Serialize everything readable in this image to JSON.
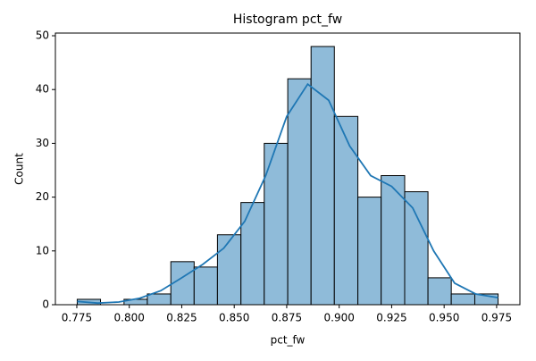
{
  "chart_data": {
    "type": "histogram",
    "title": "Histogram pct_fw",
    "xlabel": "pct_fw",
    "ylabel": "Count",
    "bins": [
      0.7752,
      0.7863,
      0.7975,
      0.8086,
      0.8198,
      0.8309,
      0.842,
      0.8532,
      0.8643,
      0.8755,
      0.8866,
      0.8977,
      0.9089,
      0.92,
      0.9312,
      0.9423,
      0.9534,
      0.9646,
      0.9757
    ],
    "values": [
      1,
      0,
      1,
      2,
      8,
      7,
      13,
      19,
      30,
      42,
      48,
      35,
      20,
      24,
      21,
      5,
      2,
      2
    ],
    "color": "#8fbbd9",
    "edgecolor": "#000000",
    "kde": {
      "color": "#1f77b4",
      "x": [
        0.7752,
        0.785,
        0.795,
        0.805,
        0.815,
        0.825,
        0.835,
        0.845,
        0.855,
        0.865,
        0.875,
        0.885,
        0.895,
        0.905,
        0.915,
        0.925,
        0.935,
        0.945,
        0.955,
        0.965,
        0.9757
      ],
      "values": [
        0.6,
        0.3,
        0.5,
        1.2,
        2.6,
        5,
        7.5,
        10.5,
        15.5,
        24,
        35,
        41,
        38,
        29.5,
        24,
        22,
        18,
        10,
        4,
        2,
        1.3
      ]
    },
    "xlim": [
      0.7648,
      0.9861
    ],
    "ylim": [
      0,
      50.5
    ],
    "xticks": [
      0.775,
      {
        "value": 0.8,
        "label": "0.800"
      },
      0.825,
      {
        "value": 0.85,
        "label": "0.850"
      },
      0.875,
      {
        "value": 0.9,
        "label": "0.900"
      },
      0.925,
      {
        "value": 0.95,
        "label": "0.950"
      },
      0.975
    ],
    "yticks": [
      0,
      10,
      20,
      30,
      40,
      50
    ]
  }
}
